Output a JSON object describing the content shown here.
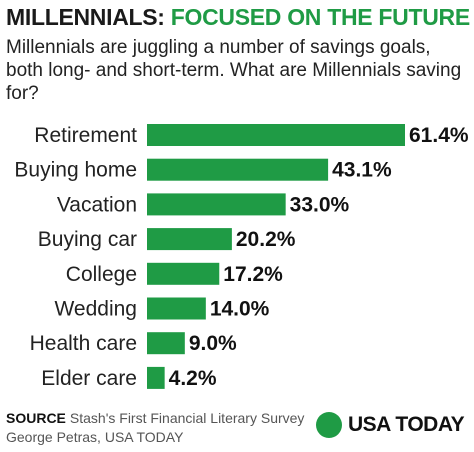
{
  "title": {
    "part1": "MILLENNIALS:",
    "part2": "FOCUSED ON THE FUTURE"
  },
  "subtitle": "Millennials are juggling a number of savings goals, both long- and short-term. What are Millennials saving for?",
  "colors": {
    "bar": "#1f9b45",
    "title_accent": "#1f9b45",
    "text": "#1a1a1a"
  },
  "chart_data": {
    "type": "bar",
    "orientation": "horizontal",
    "categories": [
      "Retirement",
      "Buying home",
      "Vacation",
      "Buying car",
      "College",
      "Wedding",
      "Health care",
      "Elder care"
    ],
    "values": [
      61.4,
      43.1,
      33.0,
      20.2,
      17.2,
      14.0,
      9.0,
      4.2
    ],
    "value_labels": [
      "61.4%",
      "43.1%",
      "33.0%",
      "20.2%",
      "17.2%",
      "14.0%",
      "9.0%",
      "4.2%"
    ],
    "title": "MILLENNIALS: FOCUSED ON THE FUTURE",
    "xlabel": "",
    "ylabel": "",
    "grid": false,
    "legend": "none"
  },
  "footer": {
    "source_label": "SOURCE",
    "source_text": "Stash's First Financial Literary Survey",
    "credit": "George Petras, USA TODAY",
    "logo_text": "USA TODAY"
  }
}
